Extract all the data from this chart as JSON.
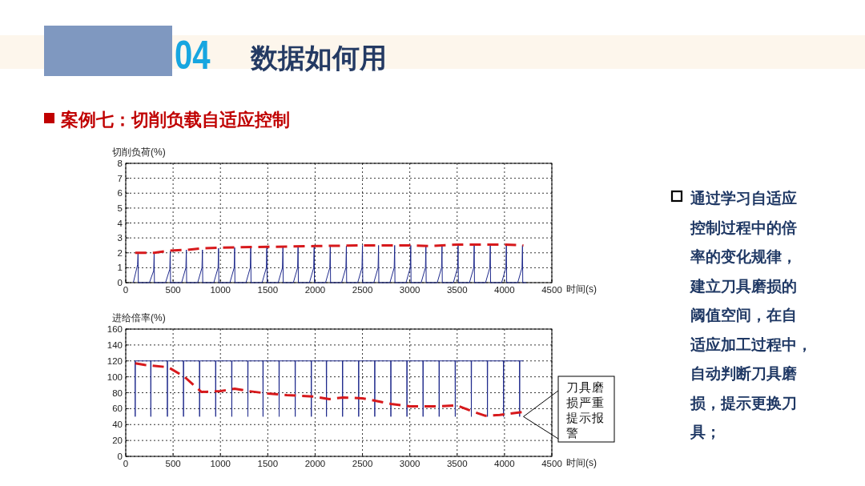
{
  "chart_data": [
    {
      "type": "other",
      "title": "数据如何用",
      "subtitle": "案例七：切削负载自适应控制",
      "annotations": [
        "04",
        "通过学习自适应控制过程中的倍率的变化规律，建立刀具磨损的阈值空间，在自适应加工过程中，自动判断刀具磨损，提示更换刀具；"
      ]
    },
    {
      "type": "line",
      "ylabel": "切削负荷(%)",
      "xlabel": "时间(s)",
      "xlim": [
        0,
        4500
      ],
      "xticks": [
        0,
        500,
        1000,
        1500,
        2000,
        2500,
        3000,
        3500,
        4000,
        4500
      ],
      "ylim": [
        0,
        8
      ],
      "yticks": [
        0,
        1,
        2,
        3,
        4,
        5,
        6,
        7,
        8
      ],
      "grid": true,
      "series": [
        {
          "color": "#1f2a8c",
          "line_style": "solid",
          "x": [
            80,
            125,
            130,
            133,
            250,
            295,
            300,
            303,
            420,
            465,
            470,
            473,
            590,
            635,
            640,
            643,
            760,
            805,
            810,
            813,
            930,
            975,
            980,
            983,
            1100,
            1145,
            1150,
            1153,
            1270,
            1315,
            1320,
            1323,
            1440,
            1485,
            1490,
            1493,
            1610,
            1655,
            1660,
            1663,
            1770,
            1815,
            1820,
            1823,
            1940,
            1985,
            1990,
            1993,
            2110,
            2155,
            2160,
            2163,
            2280,
            2325,
            2330,
            2333,
            2450,
            2495,
            2500,
            2503,
            2620,
            2665,
            2670,
            2673,
            2790,
            2835,
            2840,
            2843,
            2960,
            3005,
            3010,
            3013,
            3120,
            3165,
            3170,
            3173,
            3290,
            3335,
            3340,
            3343,
            3460,
            3505,
            3510,
            3513,
            3630,
            3675,
            3680,
            3683,
            3800,
            3845,
            3850,
            3853,
            3970,
            4015,
            4020,
            4023,
            4140,
            4185,
            4190,
            4193,
            4230
          ],
          "values": [
            0,
            1.2,
            2.0,
            0,
            0,
            0.8,
            2.0,
            0,
            0,
            0.9,
            2.1,
            0,
            0,
            1.0,
            2.2,
            0,
            0,
            1.0,
            2.2,
            0,
            0,
            1.0,
            2.3,
            0,
            0,
            1.0,
            2.35,
            0,
            0,
            1.0,
            2.4,
            0,
            0,
            1.0,
            2.4,
            0,
            0,
            1.0,
            2.4,
            0,
            0,
            1.0,
            2.4,
            0,
            0,
            1.0,
            2.45,
            0,
            0,
            1.0,
            2.45,
            0,
            0,
            1.0,
            2.45,
            0,
            0,
            1.0,
            2.5,
            0,
            0,
            1.0,
            2.5,
            0,
            0,
            1.0,
            2.5,
            0,
            0,
            1.0,
            2.5,
            0,
            0,
            1.0,
            2.45,
            0,
            0,
            1.0,
            2.45,
            0,
            0,
            1.0,
            2.5,
            0,
            0,
            1.0,
            2.5,
            0,
            0,
            1.0,
            2.5,
            0,
            0,
            1.0,
            2.5,
            0,
            0,
            1.0,
            2.5,
            0,
            0
          ]
        },
        {
          "color": "#d7191c",
          "line_style": "dashed",
          "x": [
            100,
            300,
            470,
            650,
            800,
            1000,
            1500,
            2000,
            2500,
            3000,
            3200,
            3500,
            4000,
            4200
          ],
          "values": [
            2.0,
            2.0,
            2.15,
            2.2,
            2.3,
            2.35,
            2.4,
            2.45,
            2.5,
            2.5,
            2.45,
            2.55,
            2.55,
            2.5
          ]
        }
      ]
    },
    {
      "type": "line",
      "ylabel": "进给倍率(%)",
      "xlabel": "时间(s)",
      "xlim": [
        0,
        4500
      ],
      "xticks": [
        0,
        500,
        1000,
        1500,
        2000,
        2500,
        3000,
        3500,
        4000,
        4500
      ],
      "ylim": [
        0,
        160
      ],
      "yticks": [
        0,
        20,
        40,
        60,
        80,
        100,
        120,
        140,
        160
      ],
      "grid": true,
      "annotations": [
        "刀具磨损严重提示报警"
      ],
      "series": [
        {
          "color": "#1f2a8c",
          "line_style": "solid",
          "x": [
            95,
            98,
            100,
            102,
            263,
            265,
            267,
            438,
            440,
            442,
            608,
            610,
            612,
            778,
            780,
            782,
            948,
            950,
            952,
            1118,
            1120,
            1122,
            1288,
            1290,
            1292,
            1448,
            1450,
            1452,
            1618,
            1620,
            1622,
            1788,
            1790,
            1792,
            1958,
            1960,
            1962,
            2118,
            2120,
            2122,
            2288,
            2290,
            2292,
            2458,
            2460,
            2462,
            2628,
            2630,
            2632,
            2798,
            2800,
            2802,
            2968,
            2970,
            2972,
            3138,
            3140,
            3142,
            3308,
            3310,
            3312,
            3478,
            3480,
            3482,
            3648,
            3650,
            3652,
            3818,
            3820,
            3822,
            3988,
            3990,
            3992,
            4158,
            4160,
            4162,
            4200
          ],
          "values": [
            120,
            120,
            50,
            120,
            120,
            50,
            120,
            120,
            50,
            120,
            120,
            50,
            120,
            120,
            50,
            120,
            120,
            50,
            120,
            120,
            50,
            120,
            120,
            50,
            120,
            120,
            50,
            120,
            120,
            50,
            120,
            120,
            50,
            120,
            120,
            50,
            120,
            120,
            50,
            120,
            120,
            50,
            120,
            120,
            50,
            120,
            120,
            50,
            120,
            120,
            50,
            120,
            120,
            50,
            120,
            120,
            50,
            120,
            120,
            50,
            120,
            120,
            50,
            120,
            120,
            50,
            120,
            120,
            50,
            120,
            120,
            50,
            120,
            120,
            50,
            120,
            120
          ]
        },
        {
          "color": "#d7191c",
          "line_style": "dashed",
          "x": [
            100,
            200,
            450,
            620,
            800,
            1000,
            1150,
            1300,
            1500,
            1700,
            2000,
            2150,
            2300,
            2500,
            2800,
            3000,
            3300,
            3500,
            3650,
            3800,
            3950,
            4200
          ],
          "values": [
            117,
            115,
            112,
            100,
            81,
            82,
            85,
            82,
            79,
            77,
            75,
            72,
            74,
            73,
            66,
            63,
            63,
            64,
            57,
            51,
            52,
            56
          ]
        }
      ]
    }
  ]
}
